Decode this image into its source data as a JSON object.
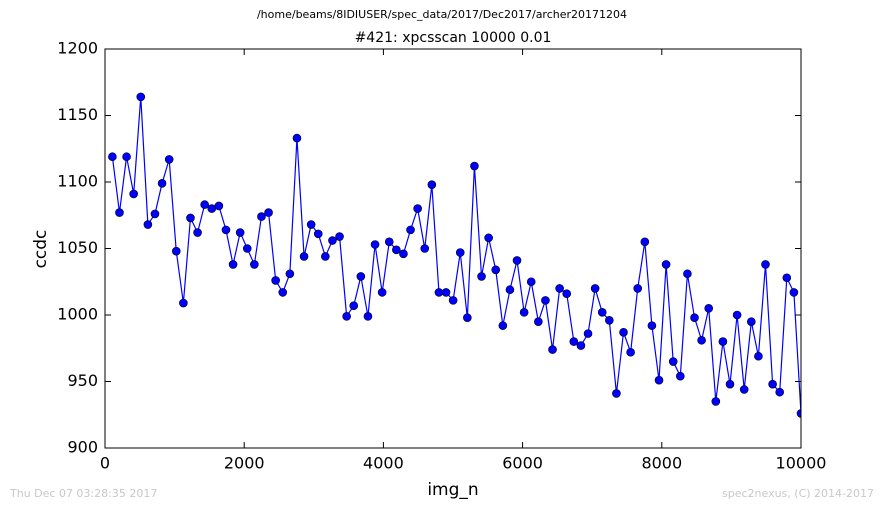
{
  "chart_data": {
    "type": "line",
    "suptitle": "/home/beams/8IDIUSER/spec_data/2017/Dec2017/archer20171204",
    "title": "#421: xpcsscan 10000 0.01",
    "x_label": "img_n",
    "y_label": "ccdc",
    "footer_left": "Thu Dec 07 03:28:35 2017",
    "footer_right": "spec2nexus, (C) 2014-2017",
    "x": [
      106,
      208,
      310,
      412,
      514,
      616,
      718,
      820,
      922,
      1024,
      1126,
      1228,
      1330,
      1432,
      1534,
      1636,
      1738,
      1840,
      1942,
      2044,
      2146,
      2248,
      2350,
      2452,
      2554,
      2656,
      2758,
      2860,
      2962,
      3064,
      3166,
      3268,
      3370,
      3472,
      3574,
      3676,
      3778,
      3880,
      3982,
      4084,
      4186,
      4288,
      4390,
      4492,
      4594,
      4696,
      4798,
      4900,
      5002,
      5104,
      5206,
      5308,
      5410,
      5512,
      5614,
      5716,
      5818,
      5920,
      6022,
      6124,
      6226,
      6328,
      6430,
      6532,
      6634,
      6736,
      6838,
      6940,
      7042,
      7144,
      7246,
      7348,
      7450,
      7552,
      7654,
      7756,
      7858,
      7960,
      8062,
      8164,
      8266,
      8368,
      8470,
      8572,
      8674,
      8776,
      8878,
      8980,
      9082,
      9184,
      9286,
      9388,
      9490,
      9592,
      9694,
      9796,
      9898,
      10000
    ],
    "series": [
      {
        "color": "#0000ff",
        "values": [
          1119,
          1077,
          1119,
          1091,
          1164,
          1068,
          1076,
          1099,
          1117,
          1048,
          1009,
          1073,
          1062,
          1083,
          1080,
          1082,
          1064,
          1038,
          1062,
          1050,
          1038,
          1074,
          1077,
          1026,
          1017,
          1031,
          1133,
          1044,
          1068,
          1061,
          1044,
          1056,
          1059,
          999,
          1007,
          1029,
          999,
          1053,
          1017,
          1055,
          1049,
          1046,
          1064,
          1080,
          1050,
          1098,
          1017,
          1017,
          1011,
          1047,
          998,
          1112,
          1029,
          1058,
          1034,
          992,
          1019,
          1041,
          1002,
          1025,
          995,
          1011,
          974,
          1020,
          1016,
          980,
          977,
          986,
          1020,
          1002,
          996,
          941,
          987,
          972,
          1020,
          1055,
          992,
          951,
          1038,
          965,
          954,
          1031,
          998,
          981,
          1005,
          935,
          980,
          948,
          1000,
          944,
          995,
          969,
          1038,
          948,
          942,
          1028,
          1017,
          926
        ]
      }
    ],
    "xlim": [
      0,
      10000
    ],
    "ylim": [
      900,
      1200
    ],
    "xticks": [
      0,
      2000,
      4000,
      6000,
      8000,
      10000
    ],
    "yticks": [
      900,
      950,
      1000,
      1050,
      1100,
      1150,
      1200
    ]
  }
}
